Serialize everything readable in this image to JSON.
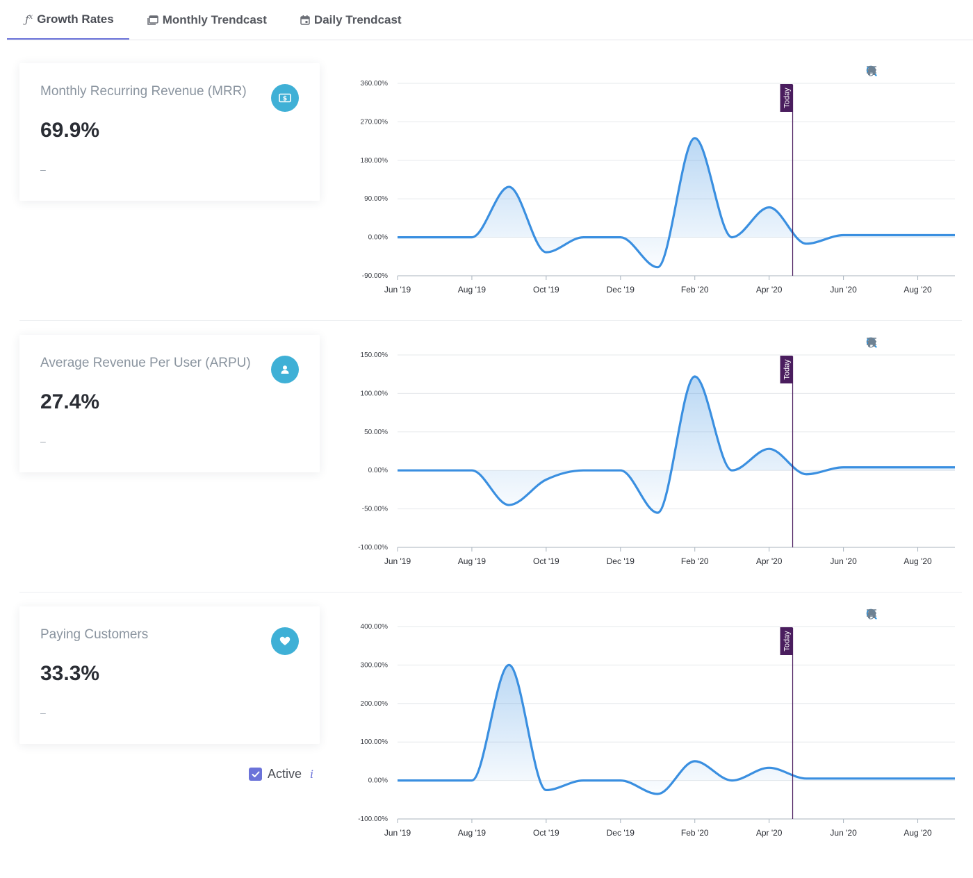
{
  "tabs": [
    {
      "label": "Growth Rates",
      "icon": "function-icon",
      "active": true
    },
    {
      "label": "Monthly Trendcast",
      "icon": "calendar-stack-icon",
      "active": false
    },
    {
      "label": "Daily Trendcast",
      "icon": "calendar-icon",
      "active": false
    }
  ],
  "cards": [
    {
      "title": "Monthly Recurring Revenue (MRR)",
      "value": "69.9%",
      "sub": "–",
      "icon": "money-icon"
    },
    {
      "title": "Average Revenue Per User (ARPU)",
      "value": "27.4%",
      "sub": "–",
      "icon": "user-icon"
    },
    {
      "title": "Paying Customers",
      "value": "33.3%",
      "sub": "–",
      "icon": "heart-icon"
    }
  ],
  "active_toggle": {
    "label": "Active",
    "checked": true,
    "info": "i"
  },
  "toolbar_icons": [
    "zoom-in-icon",
    "zoom-out-icon",
    "selection-zoom-icon",
    "pan-icon",
    "home-icon",
    "menu-icon"
  ],
  "colors": {
    "line": "#3a8fe0",
    "today_marker": "#4a1d5e",
    "accent": "#6b73d9",
    "badge": "#3fb0d6"
  },
  "chart_data": [
    {
      "type": "area",
      "x_domain": [
        "2019-06",
        "2020-09"
      ],
      "x_ticks": [
        "Jun '19",
        "Aug '19",
        "Oct '19",
        "Dec '19",
        "Feb '20",
        "Apr '20",
        "Jun '20",
        "Aug '20"
      ],
      "ylim": [
        -90,
        360
      ],
      "y_ticks": [
        "-90.00%",
        "0.00%",
        "90.00%",
        "180.00%",
        "270.00%",
        "360.00%"
      ],
      "x": [
        "2019-06",
        "2019-07",
        "2019-08",
        "2019-09",
        "2019-10",
        "2019-11",
        "2019-12",
        "2020-01",
        "2020-02",
        "2020-03",
        "2020-04",
        "2020-05",
        "2020-06",
        "2020-07",
        "2020-08",
        "2020-09"
      ],
      "values": [
        0,
        0,
        0,
        118,
        -35,
        0,
        0,
        -70,
        232,
        0,
        70,
        -15,
        5,
        5,
        5,
        5
      ],
      "annotation": {
        "label": "Today",
        "x": "2020-04-20"
      },
      "grid": true
    },
    {
      "type": "area",
      "x_domain": [
        "2019-06",
        "2020-09"
      ],
      "x_ticks": [
        "Jun '19",
        "Aug '19",
        "Oct '19",
        "Dec '19",
        "Feb '20",
        "Apr '20",
        "Jun '20",
        "Aug '20"
      ],
      "ylim": [
        -100,
        150
      ],
      "y_ticks": [
        "-100.00%",
        "-50.00%",
        "0.00%",
        "50.00%",
        "100.00%",
        "150.00%"
      ],
      "x": [
        "2019-06",
        "2019-07",
        "2019-08",
        "2019-09",
        "2019-10",
        "2019-11",
        "2019-12",
        "2020-01",
        "2020-02",
        "2020-03",
        "2020-04",
        "2020-05",
        "2020-06",
        "2020-07",
        "2020-08",
        "2020-09"
      ],
      "values": [
        0,
        0,
        0,
        -45,
        -12,
        0,
        0,
        -55,
        122,
        0,
        28,
        -5,
        4,
        4,
        4,
        4
      ],
      "annotation": {
        "label": "Today",
        "x": "2020-04-20"
      },
      "grid": true
    },
    {
      "type": "area",
      "x_domain": [
        "2019-06",
        "2020-09"
      ],
      "x_ticks": [
        "Jun '19",
        "Aug '19",
        "Oct '19",
        "Dec '19",
        "Feb '20",
        "Apr '20",
        "Jun '20",
        "Aug '20"
      ],
      "ylim": [
        -100,
        400
      ],
      "y_ticks": [
        "-100.00%",
        "0.00%",
        "100.00%",
        "200.00%",
        "300.00%",
        "400.00%"
      ],
      "x": [
        "2019-06",
        "2019-07",
        "2019-08",
        "2019-09",
        "2019-10",
        "2019-11",
        "2019-12",
        "2020-01",
        "2020-02",
        "2020-03",
        "2020-04",
        "2020-05",
        "2020-06",
        "2020-07",
        "2020-08",
        "2020-09"
      ],
      "values": [
        0,
        0,
        0,
        300,
        -25,
        0,
        0,
        -35,
        50,
        0,
        33,
        5,
        5,
        5,
        5,
        5
      ],
      "annotation": {
        "label": "Today",
        "x": "2020-04-20"
      },
      "grid": true
    }
  ]
}
